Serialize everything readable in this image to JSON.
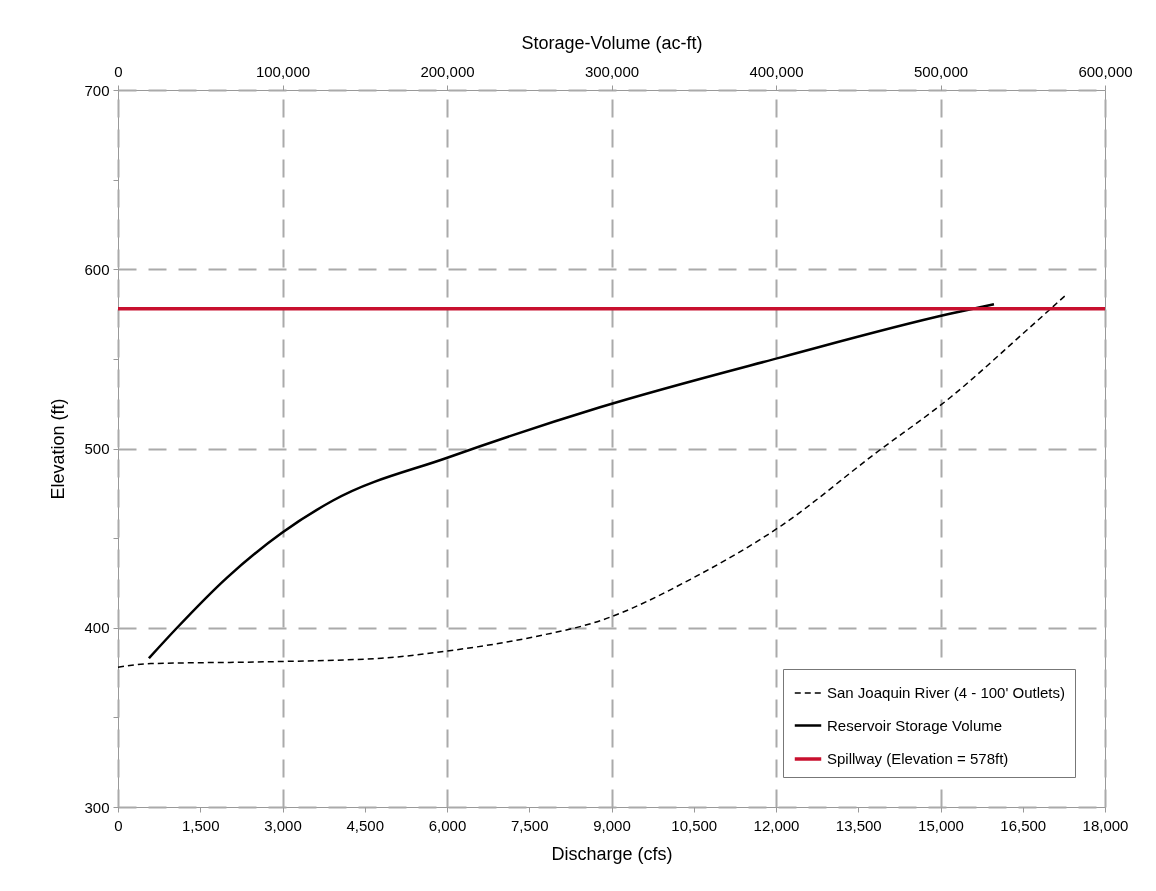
{
  "chart_data": {
    "type": "line",
    "xlabel": "Discharge (cfs)",
    "x2label": "Storage-Volume (ac-ft)",
    "ylabel": "Elevation (ft)",
    "xlim": [
      0,
      18000
    ],
    "xticks": [
      0,
      {
        "value": 1500,
        "label": "1,500"
      },
      {
        "value": 3000,
        "label": "3,000"
      },
      {
        "value": 4500,
        "label": "4,500"
      },
      {
        "value": 6000,
        "label": "6,000"
      },
      {
        "value": 7500,
        "label": "7,500"
      },
      {
        "value": 9000,
        "label": "9,000"
      },
      {
        "value": 10500,
        "label": "10,500"
      },
      {
        "value": 12000,
        "label": "12,000"
      },
      {
        "value": 13500,
        "label": "13,500"
      },
      {
        "value": 15000,
        "label": "15,000"
      },
      {
        "value": 16500,
        "label": "16,500"
      },
      {
        "value": 18000,
        "label": "18,000"
      }
    ],
    "x2lim": [
      0,
      600000
    ],
    "x2ticks": [
      0,
      {
        "value": 100000,
        "label": "100,000"
      },
      {
        "value": 200000,
        "label": "200,000"
      },
      {
        "value": 300000,
        "label": "300,000"
      },
      {
        "value": 400000,
        "label": "400,000"
      },
      {
        "value": 500000,
        "label": "500,000"
      },
      {
        "value": 600000,
        "label": "600,000"
      }
    ],
    "ylim": [
      300,
      700
    ],
    "yticks": [
      300,
      {
        "value": 350,
        "label": null
      },
      400,
      {
        "value": 450,
        "label": null
      },
      500,
      {
        "value": 550,
        "label": null
      },
      600,
      {
        "value": 650,
        "label": null
      },
      700
    ],
    "grid": true,
    "legend": "bottom right",
    "series": [
      {
        "name": "San Joaquin River (4 - 100' Outlets)",
        "color": "#000000",
        "line_style": "dashed",
        "x": [
          0,
          600,
          2700,
          4800,
          6000,
          7600,
          8800,
          10500,
          12100,
          13800,
          15200,
          16500,
          17300
        ],
        "values": [
          378,
          380,
          381,
          383,
          387,
          395,
          404,
          428,
          457,
          497,
          529,
          564,
          586
        ]
      },
      {
        "name": "Reservoir Storage Volume",
        "color": "#000000",
        "line_style": "solid",
        "axis": "x2",
        "x": [
          18800,
          35900,
          66300,
          99700,
          130700,
          200600,
          293000,
          403600,
          505000,
          532500
        ],
        "values": [
          383,
          400,
          428,
          453,
          471,
          495,
          523,
          551,
          575,
          580.5
        ]
      }
    ],
    "ref_lines": [
      {
        "axis": "y",
        "value": 578,
        "label": "Spillway (Elevation = 578ft)",
        "color": "#c8102e"
      }
    ]
  }
}
